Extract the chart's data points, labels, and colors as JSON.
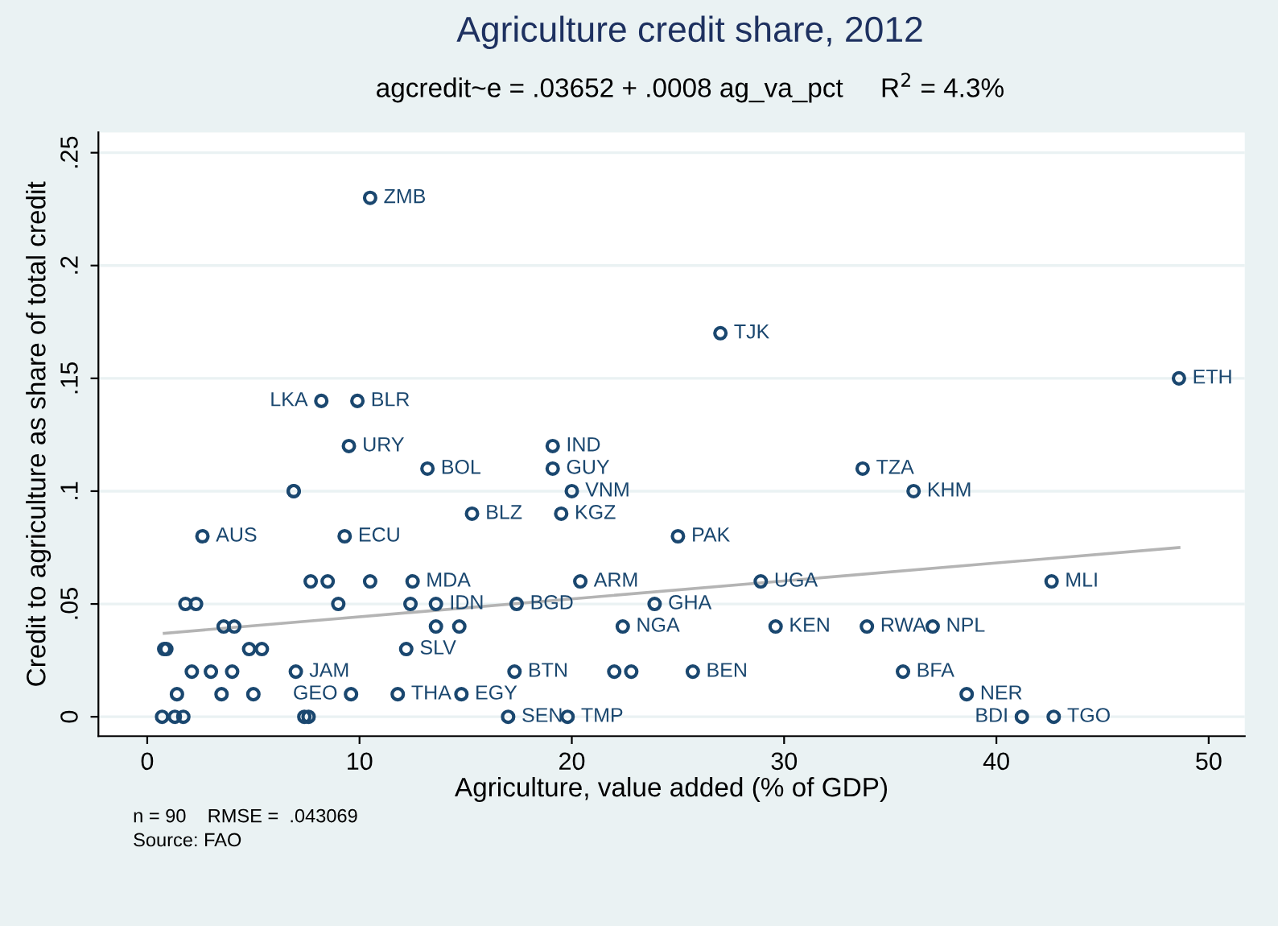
{
  "chart_data": {
    "type": "scatter",
    "title": "Agriculture credit share, 2012",
    "subtitle": "agcredit~e = .03652 + .0008 ag_va_pct     R$^{2}$ = 4.3%",
    "xlabel": "Agriculture, value added (% of GDP)",
    "ylabel": "Credit to agriculture as share of total credit",
    "annotations": [
      "n = 90    RMSE =  .043069",
      "Source: FAO"
    ],
    "xlim": [
      -2.3,
      51.7
    ],
    "ylim": [
      -0.0086,
      0.259
    ],
    "xticks": [
      0,
      10,
      20,
      30,
      40,
      50
    ],
    "yticks": [
      0,
      {
        "value": 0.05,
        "label": ".05"
      },
      {
        "value": 0.1,
        "label": ".1"
      },
      {
        "value": 0.15,
        "label": ".15"
      },
      {
        "value": 0.2,
        "label": ".2"
      },
      {
        "value": 0.25,
        "label": ".25"
      }
    ],
    "grid": "y",
    "marker": "circle",
    "series": [
      {
        "color": "#1a476f",
        "x": [
          10.5,
          27.0,
          48.6,
          8.2,
          9.9,
          9.5,
          13.2,
          19.1,
          19.1,
          20.0,
          19.5,
          15.3,
          6.9,
          6.9,
          2.6,
          9.3,
          25.0,
          33.7,
          36.1,
          28.9,
          42.6,
          23.9,
          29.6,
          33.9,
          37.0,
          25.7,
          35.6,
          38.6,
          41.2,
          42.7,
          20.4,
          17.4,
          22.4,
          13.6,
          14.7,
          12.2,
          17.3,
          22.0,
          22.8,
          11.8,
          9.6,
          14.8,
          17.0,
          19.8,
          0.7,
          1.3,
          1.7,
          7.4,
          7.6,
          1.4,
          3.5,
          5.0,
          2.1,
          3.0,
          4.0,
          7.0,
          0.8,
          0.9,
          4.8,
          5.4,
          3.6,
          4.1,
          1.8,
          2.3,
          9.0,
          12.4,
          13.6,
          7.7,
          8.5,
          10.5,
          12.5
        ],
        "values": [
          0.23,
          0.17,
          0.15,
          0.14,
          0.14,
          0.12,
          0.11,
          0.12,
          0.11,
          0.1,
          0.09,
          0.09,
          0.1,
          0.1,
          0.08,
          0.08,
          0.08,
          0.11,
          0.1,
          0.06,
          0.06,
          0.05,
          0.04,
          0.04,
          0.04,
          0.02,
          0.02,
          0.01,
          0.0,
          0.0,
          0.06,
          0.05,
          0.04,
          0.04,
          0.04,
          0.03,
          0.02,
          0.02,
          0.02,
          0.01,
          0.01,
          0.01,
          0.0,
          0.0,
          0.0,
          0.0,
          0.0,
          0.0,
          0.0,
          0.01,
          0.01,
          0.01,
          0.02,
          0.02,
          0.02,
          0.02,
          0.03,
          0.03,
          0.03,
          0.03,
          0.04,
          0.04,
          0.05,
          0.05,
          0.05,
          0.05,
          0.05,
          0.06,
          0.06,
          0.06,
          0.06
        ],
        "value_labels": [
          "ZMB",
          "TJK",
          "ETH",
          "LKA",
          "BLR",
          "URY",
          "BOL",
          "IND",
          "GUY",
          "VNM",
          "KGZ",
          "BLZ",
          null,
          null,
          "AUS",
          "ECU",
          "PAK",
          "TZA",
          "KHM",
          "UGA",
          "MLI",
          "GHA",
          "KEN",
          "RWA",
          "NPL",
          "BEN",
          "BFA",
          "NER",
          "BDI",
          "TGO",
          "ARM",
          "BGD",
          "NGA",
          null,
          null,
          "SLV",
          "BTN",
          null,
          null,
          "THA",
          "GEO",
          "EGY",
          "SEN",
          "TMP",
          null,
          null,
          null,
          null,
          null,
          null,
          null,
          null,
          null,
          null,
          null,
          "JAM",
          null,
          null,
          null,
          null,
          null,
          null,
          null,
          null,
          null,
          null,
          "IDN",
          null,
          null,
          null,
          "MDA"
        ]
      },
      {
        "type": "line",
        "marker": "none",
        "color": "#b4b4b4",
        "x": [
          0.8,
          48.6
        ],
        "values": [
          0.037,
          0.075
        ]
      }
    ]
  }
}
